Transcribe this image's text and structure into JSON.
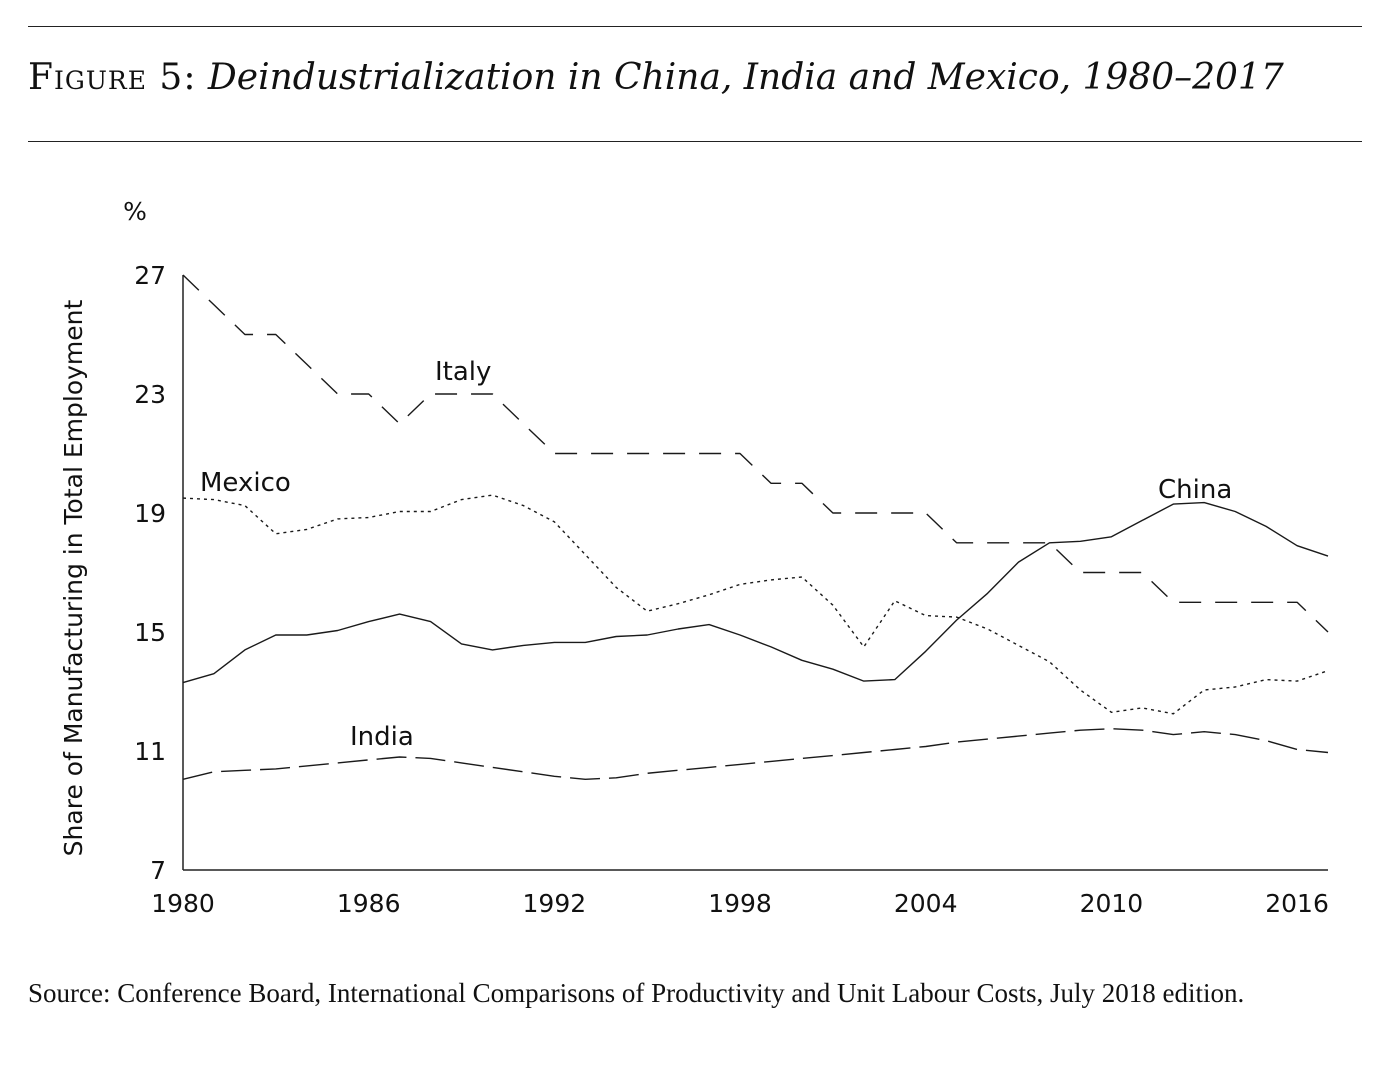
{
  "figure": {
    "label": "Figure 5:",
    "title": "Deindustrialization in China, India and Mexico, 1980–2017"
  },
  "source_note": "Source: Conference Board, International Comparisons of Productivity and Unit Labour Costs, July 2018 edition.",
  "chart_data": {
    "type": "line",
    "title": "",
    "xlabel": "",
    "ylabel": "Share of Manufacturing in Total Employment",
    "yunit": "%",
    "xlim": [
      1980,
      2017
    ],
    "ylim": [
      7,
      27
    ],
    "xticks": [
      1980,
      1986,
      1992,
      1998,
      2004,
      2010,
      2016
    ],
    "yticks": [
      7,
      11,
      15,
      19,
      23,
      27
    ],
    "grid": false,
    "legend": "inline labels",
    "series": [
      {
        "name": "Italy",
        "style": "long-dash",
        "x": [
          1980,
          1981,
          1982,
          1983,
          1984,
          1985,
          1986,
          1987,
          1988,
          1989,
          1990,
          1991,
          1992,
          1993,
          1994,
          1995,
          1996,
          1997,
          1998,
          1999,
          2000,
          2001,
          2002,
          2003,
          2004,
          2005,
          2006,
          2007,
          2008,
          2009,
          2010,
          2011,
          2012,
          2013,
          2014,
          2015,
          2016,
          2017
        ],
        "y": [
          27,
          26,
          25,
          25,
          24,
          23,
          23,
          22,
          23,
          23,
          23,
          22,
          21,
          21,
          21,
          21,
          21,
          21,
          21,
          20,
          20,
          19,
          19,
          19,
          19,
          18,
          18,
          18,
          18,
          17,
          17,
          17,
          16,
          16,
          16,
          16,
          16,
          15
        ]
      },
      {
        "name": "Mexico",
        "style": "dotted",
        "x": [
          1980,
          1981,
          1982,
          1983,
          1984,
          1985,
          1986,
          1987,
          1988,
          1989,
          1990,
          1991,
          1992,
          1993,
          1994,
          1995,
          1996,
          1997,
          1998,
          1999,
          2000,
          2001,
          2002,
          2003,
          2004,
          2005,
          2006,
          2007,
          2008,
          2009,
          2010,
          2011,
          2012,
          2013,
          2014,
          2015,
          2016,
          2017
        ],
        "y": [
          19.5,
          19.45,
          19.25,
          18.3,
          18.45,
          18.8,
          18.85,
          19.05,
          19.05,
          19.45,
          19.6,
          19.25,
          18.7,
          17.6,
          16.5,
          15.7,
          15.95,
          16.25,
          16.6,
          16.75,
          16.85,
          15.9,
          14.5,
          16.05,
          15.55,
          15.5,
          15.1,
          14.55,
          14,
          13.05,
          12.3,
          12.45,
          12.25,
          13.05,
          13.15,
          13.4,
          13.35,
          13.7
        ]
      },
      {
        "name": "China",
        "style": "solid",
        "x": [
          1980,
          1981,
          1982,
          1983,
          1984,
          1985,
          1986,
          1987,
          1988,
          1989,
          1990,
          1991,
          1992,
          1993,
          1994,
          1995,
          1996,
          1997,
          1998,
          1999,
          2000,
          2001,
          2002,
          2003,
          2004,
          2005,
          2006,
          2007,
          2008,
          2009,
          2010,
          2011,
          2012,
          2013,
          2014,
          2015,
          2016,
          2017
        ],
        "y": [
          13.3,
          13.6,
          14.4,
          14.9,
          14.9,
          15.05,
          15.35,
          15.6,
          15.35,
          14.6,
          14.4,
          14.55,
          14.65,
          14.65,
          14.85,
          14.9,
          15.1,
          15.25,
          14.9,
          14.5,
          14.05,
          13.75,
          13.35,
          13.4,
          14.35,
          15.4,
          16.3,
          17.35,
          18,
          18.05,
          18.2,
          18.75,
          19.3,
          19.35,
          19.05,
          18.55,
          17.9,
          17.55
        ]
      },
      {
        "name": "India",
        "style": "dashed",
        "x": [
          1980,
          1981,
          1982,
          1983,
          1984,
          1985,
          1986,
          1987,
          1988,
          1989,
          1990,
          1991,
          1992,
          1993,
          1994,
          1995,
          1996,
          1997,
          1998,
          1999,
          2000,
          2001,
          2002,
          2003,
          2004,
          2005,
          2006,
          2007,
          2008,
          2009,
          2010,
          2011,
          2012,
          2013,
          2014,
          2015,
          2016,
          2017
        ],
        "y": [
          10.05,
          10.3,
          10.35,
          10.4,
          10.5,
          10.6,
          10.7,
          10.8,
          10.75,
          10.6,
          10.45,
          10.3,
          10.15,
          10.05,
          10.1,
          10.25,
          10.35,
          10.45,
          10.55,
          10.65,
          10.75,
          10.85,
          10.95,
          11.05,
          11.15,
          11.3,
          11.4,
          11.5,
          11.6,
          11.7,
          11.75,
          11.7,
          11.55,
          11.65,
          11.55,
          11.35,
          11.05,
          10.95
        ]
      }
    ]
  }
}
